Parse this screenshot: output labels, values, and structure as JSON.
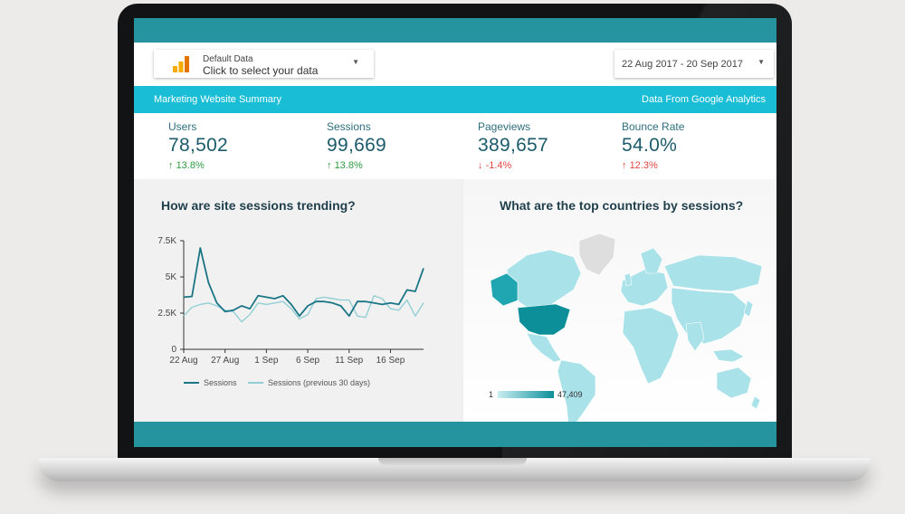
{
  "controls": {
    "data_source_title": "Default Data",
    "data_source_prompt": "Click to select your data",
    "date_range": "22 Aug 2017 - 20 Sep 2017",
    "caret": "▼"
  },
  "banner": {
    "left": "Marketing Website Summary",
    "right": "Data From Google Analytics"
  },
  "kpis": [
    {
      "label": "Users",
      "value": "78,502",
      "delta": "13.8%",
      "arrow": "↑",
      "color": "#2e9c3f"
    },
    {
      "label": "Sessions",
      "value": "99,669",
      "delta": "13.8%",
      "arrow": "↑",
      "color": "#2e9c3f"
    },
    {
      "label": "Pageviews",
      "value": "389,657",
      "delta": "-1.4%",
      "arrow": "↓",
      "color": "#e2483f"
    },
    {
      "label": "Bounce Rate",
      "value": "54.0%",
      "delta": "12.3%",
      "arrow": "↑",
      "color": "#e2483f"
    }
  ],
  "trend": {
    "title": "How are site sessions trending?",
    "y_ticks": [
      "7.5K",
      "5K",
      "2.5K",
      "0"
    ],
    "x_ticks": [
      "22 Aug",
      "27 Aug",
      "1 Sep",
      "6 Sep",
      "11 Sep",
      "16 Sep"
    ],
    "legend_sessions": "Sessions",
    "legend_previous": "Sessions (previous 30 days)"
  },
  "map": {
    "title": "What are the top countries by sessions?",
    "scale_min": "1",
    "scale_max": "47,409"
  },
  "chart_data": {
    "type": "line",
    "x": [
      "22 Aug",
      "23 Aug",
      "24 Aug",
      "25 Aug",
      "26 Aug",
      "27 Aug",
      "28 Aug",
      "29 Aug",
      "30 Aug",
      "31 Aug",
      "1 Sep",
      "2 Sep",
      "3 Sep",
      "4 Sep",
      "5 Sep",
      "6 Sep",
      "7 Sep",
      "8 Sep",
      "9 Sep",
      "10 Sep",
      "11 Sep",
      "12 Sep",
      "13 Sep",
      "14 Sep",
      "15 Sep",
      "16 Sep",
      "17 Sep",
      "18 Sep",
      "19 Sep",
      "20 Sep"
    ],
    "series": [
      {
        "name": "Sessions",
        "color": "#1a7585",
        "values": [
          3600,
          3650,
          7000,
          4600,
          3200,
          2600,
          2700,
          3000,
          2800,
          3700,
          3600,
          3500,
          3700,
          3100,
          2300,
          3000,
          3300,
          3300,
          3200,
          3000,
          2300,
          3300,
          3300,
          3200,
          3100,
          3200,
          3100,
          4100,
          4000,
          5600
        ]
      },
      {
        "name": "Sessions (previous 30 days)",
        "color": "#93cfd4",
        "values": [
          2300,
          2900,
          3100,
          3200,
          3000,
          2700,
          2600,
          1900,
          2400,
          3200,
          3100,
          3200,
          3300,
          2800,
          2100,
          2400,
          3500,
          3600,
          3500,
          3400,
          3400,
          2300,
          2200,
          3700,
          3500,
          2800,
          2700,
          3400,
          2300,
          3200
        ]
      }
    ],
    "ylim": [
      0,
      7500
    ],
    "y_ticks": [
      0,
      2500,
      5000,
      7500
    ]
  },
  "colors": {
    "teal_dark": "#26949e",
    "banner": "#19bdd5",
    "map_high": "#0d8f99",
    "map_low": "#a9e2e9",
    "map_none": "#dedede"
  }
}
